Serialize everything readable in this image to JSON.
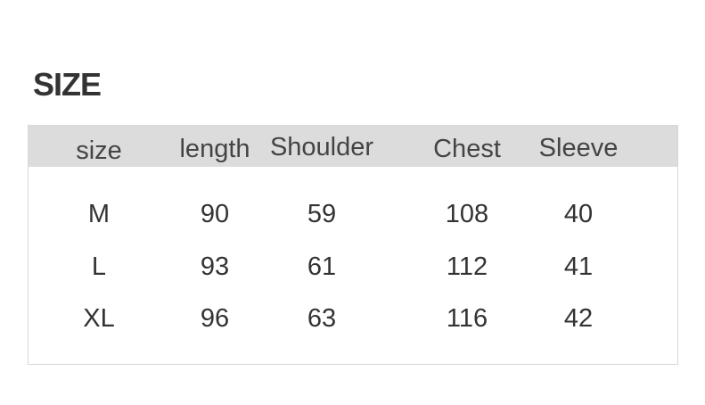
{
  "title": "SIZE",
  "headers": [
    "size",
    "length",
    "Shoulder",
    "Chest",
    "Sleeve"
  ],
  "rows": [
    [
      "M",
      "90",
      "59",
      "108",
      "40"
    ],
    [
      "L",
      "93",
      "61",
      "112",
      "41"
    ],
    [
      "XL",
      "96",
      "63",
      "116",
      "42"
    ]
  ]
}
